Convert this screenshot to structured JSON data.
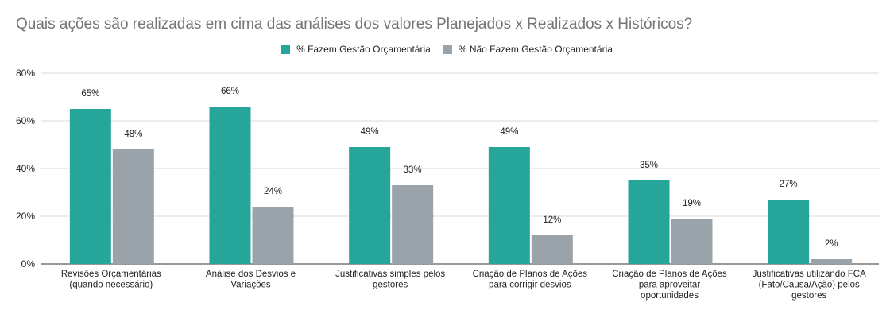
{
  "chart_data": {
    "type": "bar",
    "title": "Quais ações são realizadas em cima das análises dos valores Planejados x Realizados x Históricos?",
    "categories": [
      [
        "Revisões Orçamentárias",
        "(quando necessário)"
      ],
      [
        "Análise dos Desvios e",
        "Variações"
      ],
      [
        "Justificativas simples pelos",
        "gestores"
      ],
      [
        "Criação de Planos de Ações",
        "para corrigir desvios"
      ],
      [
        "Criação de Planos de Ações",
        "para aproveitar",
        "oportunidades"
      ],
      [
        "Justificativas utilizando FCA",
        "(Fato/Causa/Ação) pelos",
        "gestores"
      ]
    ],
    "series": [
      {
        "name": "% Fazem Gestão Orçamentária",
        "color": "#26a69a",
        "values": [
          65,
          66,
          49,
          49,
          35,
          27
        ],
        "labels": [
          "65%",
          "66%",
          "49%",
          "49%",
          "35%",
          "27%"
        ]
      },
      {
        "name": "% Não Fazem Gestão Orçamentária",
        "color": "#9aa3a9",
        "values": [
          48,
          24,
          33,
          12,
          19,
          2
        ],
        "labels": [
          "48%",
          "24%",
          "33%",
          "12%",
          "19%",
          "2%"
        ]
      }
    ],
    "ylim": [
      0,
      80
    ],
    "yticks": [
      0,
      20,
      40,
      60,
      80
    ],
    "ytick_labels": [
      "0%",
      "20%",
      "40%",
      "60%",
      "80%"
    ],
    "grid": true,
    "legend_position": "top"
  }
}
